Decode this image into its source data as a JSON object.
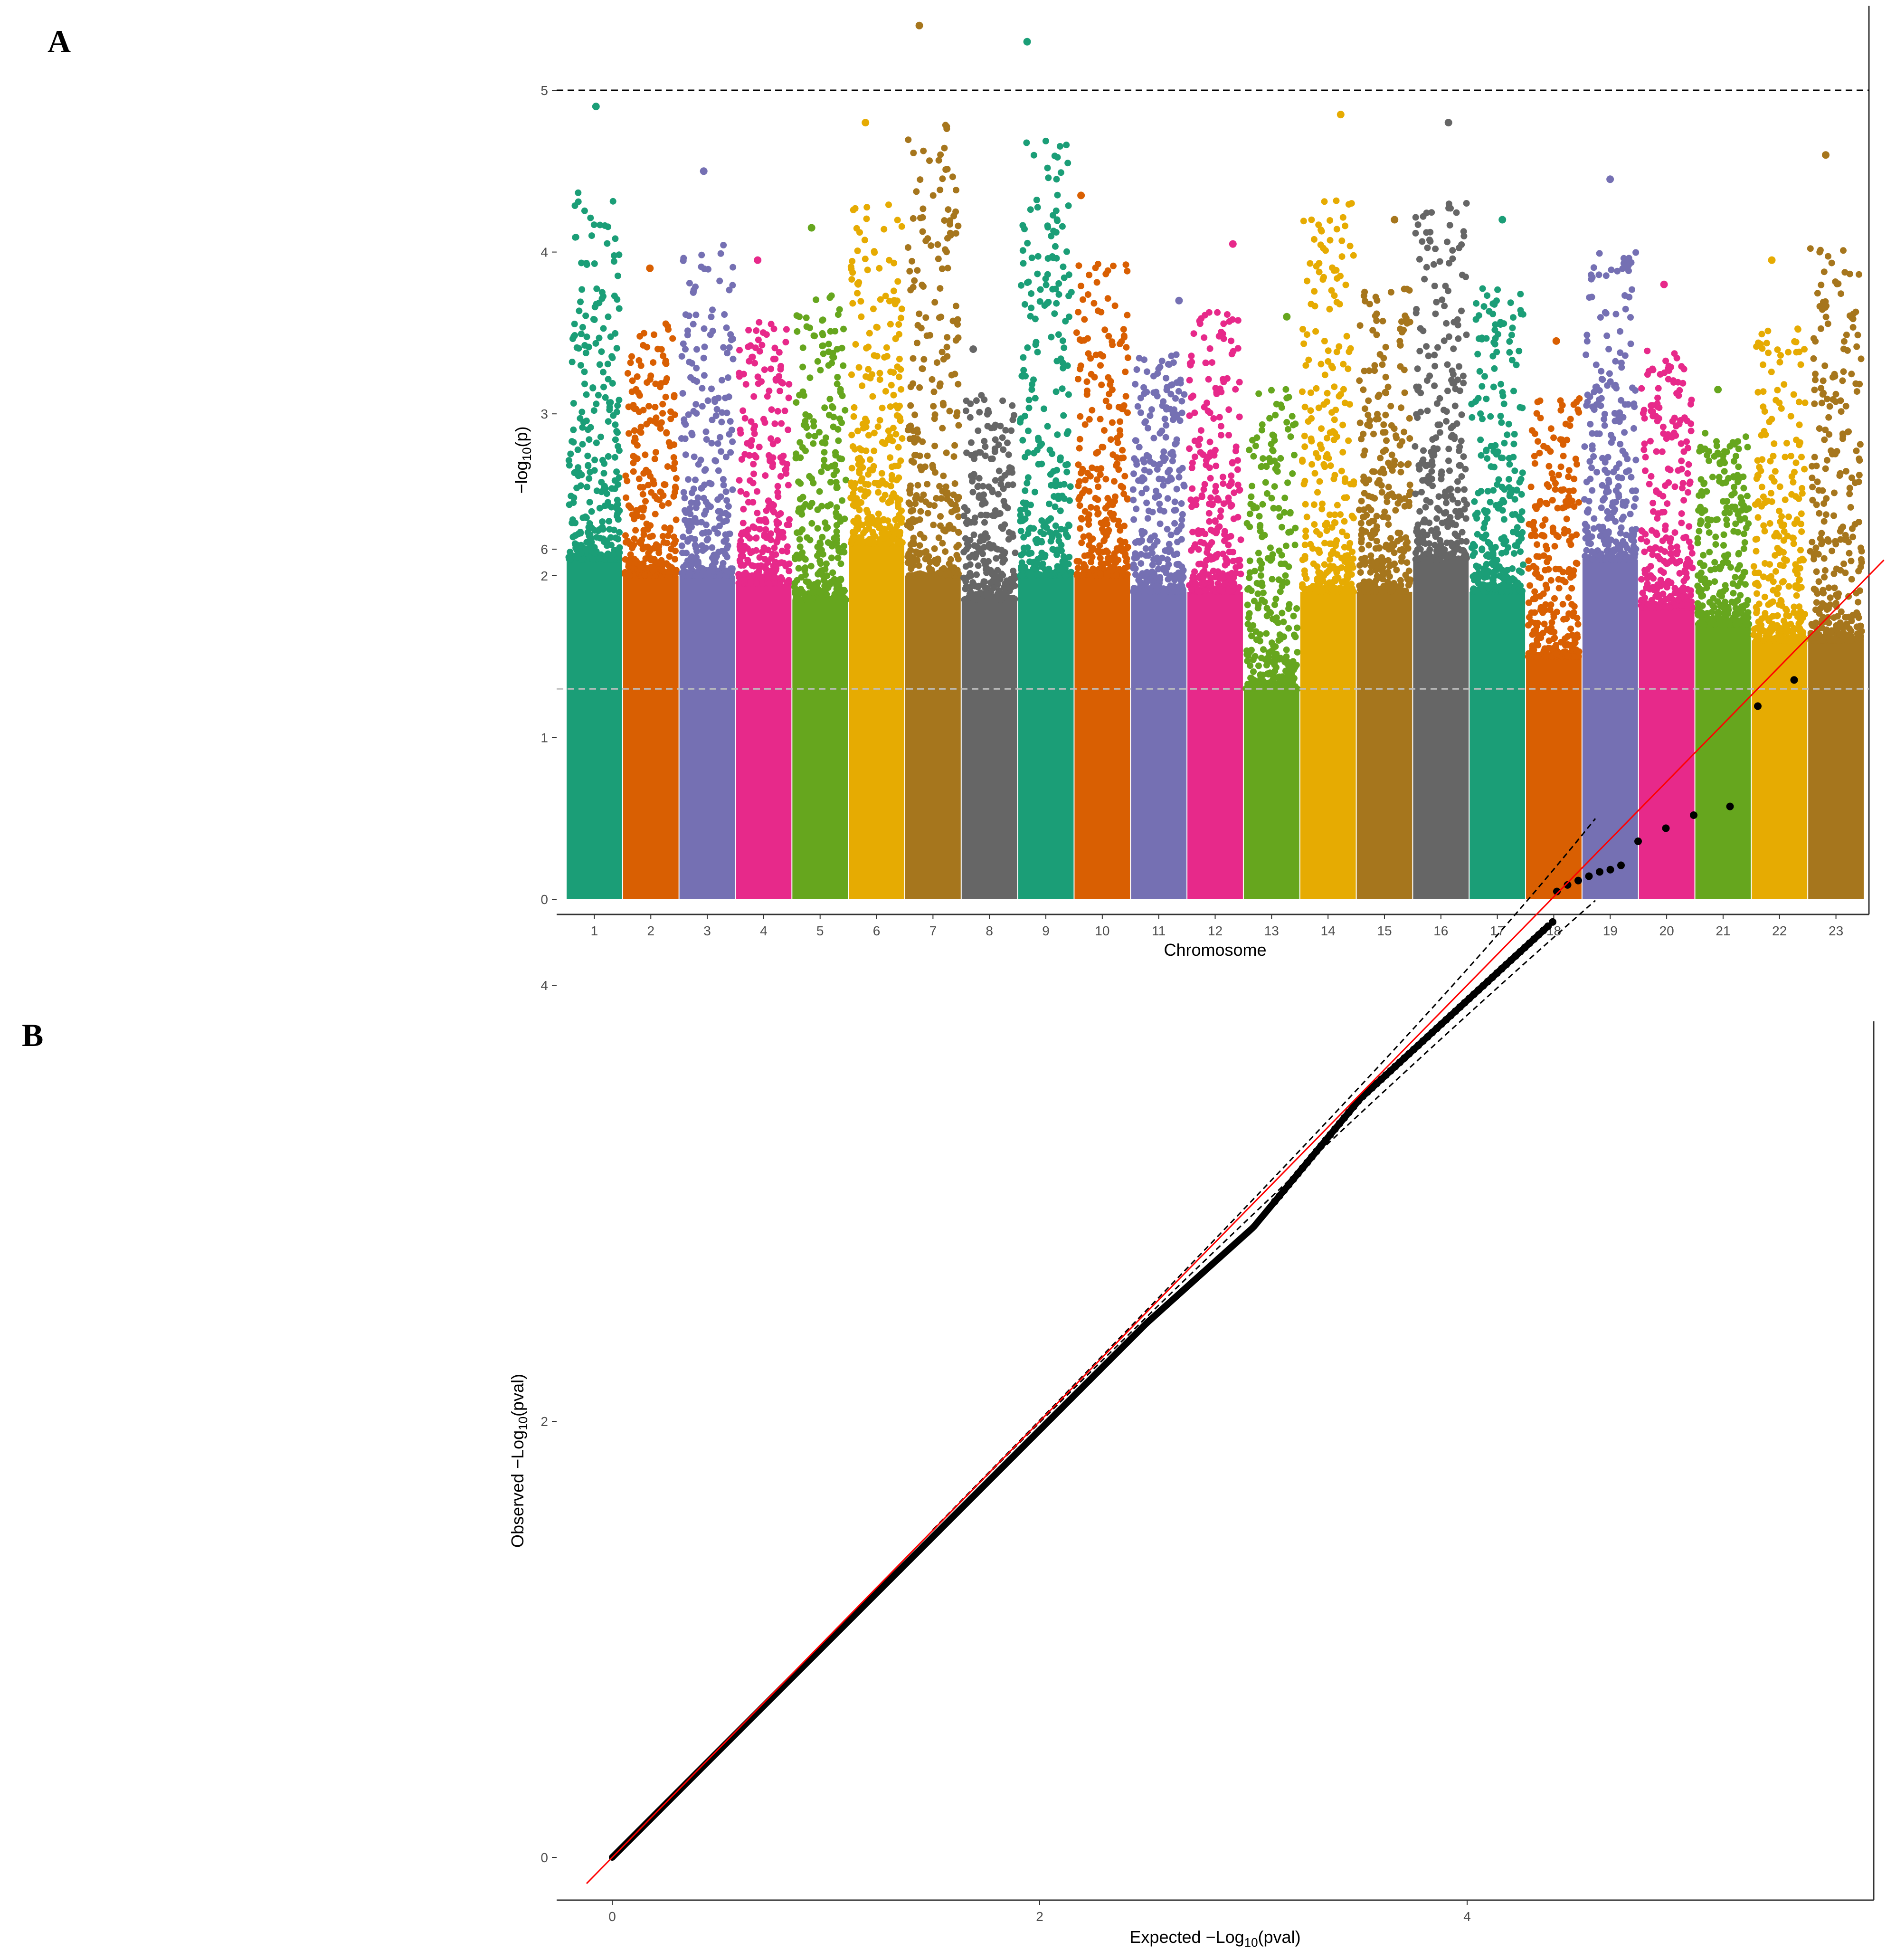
{
  "panels": {
    "a_label": "A",
    "b_label": "B"
  },
  "chart_data": [
    {
      "type": "scatter",
      "subtype": "manhattan",
      "title": "",
      "xlabel": "Chromosome",
      "ylabel": "-log10(p)",
      "ylabel_parts": {
        "prefix": "−log",
        "sub": "10",
        "suffix": "(p)"
      },
      "ylim": [
        0,
        5.4
      ],
      "yticks": [
        0,
        1,
        2,
        3,
        4,
        5
      ],
      "categories": [
        "1",
        "2",
        "3",
        "4",
        "5",
        "6",
        "7",
        "8",
        "9",
        "10",
        "11",
        "12",
        "13",
        "14",
        "15",
        "16",
        "17",
        "18",
        "19",
        "20",
        "21",
        "22",
        "23"
      ],
      "colors": [
        "#1b9e77",
        "#d95f02",
        "#7570b3",
        "#e7298a",
        "#66a61e",
        "#e6ab02",
        "#a6761d",
        "#666666",
        "#1b9e77",
        "#d95f02",
        "#7570b3",
        "#e7298a",
        "#66a61e",
        "#e6ab02",
        "#a6761d",
        "#666666",
        "#1b9e77",
        "#d95f02",
        "#7570b3",
        "#e7298a",
        "#66a61e",
        "#e6ab02",
        "#a6761d"
      ],
      "dense_top": [
        2.1,
        2.0,
        2.0,
        1.95,
        1.85,
        2.2,
        2.0,
        1.85,
        2.0,
        2.0,
        1.9,
        1.9,
        1.3,
        1.9,
        1.9,
        2.1,
        1.9,
        1.5,
        2.1,
        1.8,
        1.7,
        1.6,
        1.6
      ],
      "top_hits": [
        4.9,
        3.9,
        4.5,
        3.95,
        4.15,
        4.8,
        5.4,
        3.4,
        5.3,
        4.35,
        3.7,
        4.05,
        3.6,
        4.85,
        4.2,
        4.8,
        4.2,
        3.45,
        4.45,
        3.8,
        3.15,
        3.95,
        4.6
      ],
      "reference_lines": [
        {
          "y": 5,
          "style": "dashed",
          "color": "#000000"
        },
        {
          "y": 1.3,
          "style": "dashed",
          "color": "#bfbfbf"
        }
      ]
    },
    {
      "type": "scatter",
      "subtype": "qq",
      "title": "",
      "xlabel": "Expected -Log10(pval)",
      "xlabel_parts": {
        "prefix": "Expected −Log",
        "sub": "10",
        "suffix": "(pval)"
      },
      "ylabel": "Observed -Log10(pval)",
      "ylabel_parts": {
        "prefix": "Observed −Log",
        "sub": "10",
        "suffix": "(pval)"
      },
      "xlim": [
        -0.12,
        5.96
      ],
      "ylim": [
        -0.21,
        7.62
      ],
      "xticks": [
        0,
        2,
        4
      ],
      "yticks": [
        0,
        2,
        4,
        6
      ],
      "identity_line": {
        "color": "#ff0000",
        "slope": 1,
        "intercept": 0
      },
      "tail_points": [
        {
          "x": 4.42,
          "y": 4.43
        },
        {
          "x": 4.47,
          "y": 4.46
        },
        {
          "x": 4.52,
          "y": 4.48
        },
        {
          "x": 4.57,
          "y": 4.5
        },
        {
          "x": 4.62,
          "y": 4.52
        },
        {
          "x": 4.67,
          "y": 4.53
        },
        {
          "x": 4.72,
          "y": 4.55
        },
        {
          "x": 4.8,
          "y": 4.66
        },
        {
          "x": 4.93,
          "y": 4.72
        },
        {
          "x": 5.06,
          "y": 4.78
        },
        {
          "x": 5.23,
          "y": 4.82
        },
        {
          "x": 5.36,
          "y": 5.28
        },
        {
          "x": 5.53,
          "y": 5.4
        }
      ],
      "confidence_band": "dashed"
    }
  ]
}
